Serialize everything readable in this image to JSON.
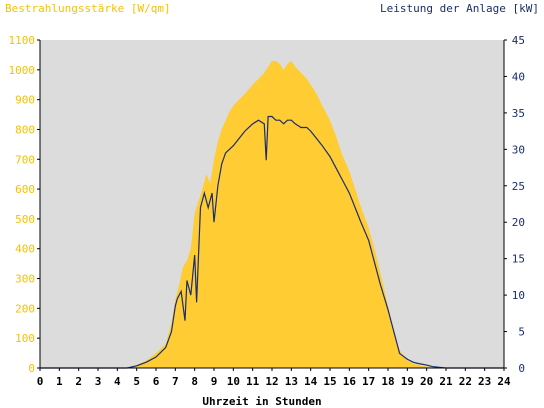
{
  "chart_data": {
    "type": "area",
    "title_left": "Bestrahlungsstärke [W/qm]",
    "title_right": "Leistung der Anlage [kW]",
    "xlabel": "Uhrzeit in Stunden",
    "xlim": [
      0,
      24
    ],
    "x_ticks": [
      "0",
      "1",
      "2",
      "3",
      "4",
      "5",
      "6",
      "7",
      "8",
      "9",
      "10",
      "11",
      "12",
      "13",
      "14",
      "15",
      "16",
      "17",
      "18",
      "19",
      "20",
      "21",
      "22",
      "23",
      "24"
    ],
    "y_left_lim": [
      0,
      1100
    ],
    "y_left_ticks": [
      "0",
      "100",
      "200",
      "300",
      "400",
      "500",
      "600",
      "700",
      "800",
      "900",
      "1000",
      "1100"
    ],
    "y_right_lim": [
      0,
      45
    ],
    "y_right_ticks": [
      "0",
      "5",
      "10",
      "15",
      "20",
      "25",
      "30",
      "35",
      "40",
      "45"
    ],
    "grid": false,
    "colors": {
      "irradiance": "#ffcc33",
      "power": "#1a2e6e",
      "plot_bg": "#dcdcdc",
      "left_axis_text": "#f5c200"
    },
    "series": [
      {
        "axis": "left",
        "x": [
          0,
          4.5,
          5,
          5.5,
          6,
          6.5,
          6.8,
          7,
          7.2,
          7.4,
          7.6,
          7.8,
          8,
          8.2,
          8.4,
          8.6,
          8.8,
          9,
          9.2,
          9.4,
          9.6,
          9.8,
          10,
          10.3,
          10.6,
          11,
          11.3,
          11.6,
          11.8,
          12,
          12.2,
          12.4,
          12.6,
          12.8,
          13,
          13.2,
          13.5,
          13.8,
          14,
          14.3,
          14.6,
          15,
          15.3,
          15.6,
          16,
          16.3,
          16.6,
          17,
          17.3,
          17.6,
          18,
          18.3,
          18.6,
          19,
          19.3,
          19.6,
          20,
          20.3,
          20.6,
          21,
          24
        ],
        "values": [
          0,
          0,
          10,
          25,
          50,
          80,
          150,
          230,
          280,
          340,
          360,
          400,
          520,
          560,
          600,
          650,
          620,
          700,
          760,
          800,
          830,
          860,
          880,
          900,
          920,
          950,
          970,
          990,
          1010,
          1030,
          1030,
          1020,
          1000,
          1020,
          1030,
          1010,
          990,
          970,
          950,
          920,
          880,
          830,
          780,
          720,
          660,
          600,
          540,
          470,
          400,
          320,
          210,
          120,
          60,
          25,
          15,
          10,
          5,
          2,
          0,
          0,
          0
        ]
      },
      {
        "axis": "right",
        "x": [
          0,
          4.5,
          5,
          5.5,
          6,
          6.5,
          6.8,
          7,
          7.1,
          7.3,
          7.5,
          7.6,
          7.8,
          8,
          8.1,
          8.3,
          8.5,
          8.7,
          8.9,
          9,
          9.2,
          9.4,
          9.6,
          9.8,
          10,
          10.3,
          10.6,
          11,
          11.3,
          11.6,
          11.7,
          11.8,
          12,
          12.2,
          12.4,
          12.6,
          12.8,
          13,
          13.2,
          13.5,
          13.8,
          14,
          14.3,
          14.6,
          15,
          15.3,
          15.6,
          16,
          16.3,
          16.6,
          17,
          17.3,
          17.6,
          18,
          18.3,
          18.6,
          19,
          19.3,
          19.6,
          20,
          20.3,
          20.6,
          21,
          24
        ],
        "values": [
          0,
          0,
          0.3,
          0.8,
          1.5,
          2.8,
          5,
          8.5,
          9.5,
          10.5,
          6.5,
          12,
          10,
          15.5,
          9,
          22,
          24,
          22,
          24,
          20,
          25,
          28,
          29.5,
          30,
          30.5,
          31.5,
          32.5,
          33.5,
          34,
          33.5,
          28.5,
          34.5,
          34.5,
          34,
          34,
          33.5,
          34,
          34,
          33.5,
          33,
          33,
          32.5,
          31.5,
          30.5,
          29,
          27.5,
          26,
          24,
          22,
          20,
          17.5,
          14.5,
          11.5,
          8,
          5,
          2,
          1.2,
          0.8,
          0.6,
          0.4,
          0.2,
          0.1,
          0,
          0
        ]
      }
    ]
  }
}
